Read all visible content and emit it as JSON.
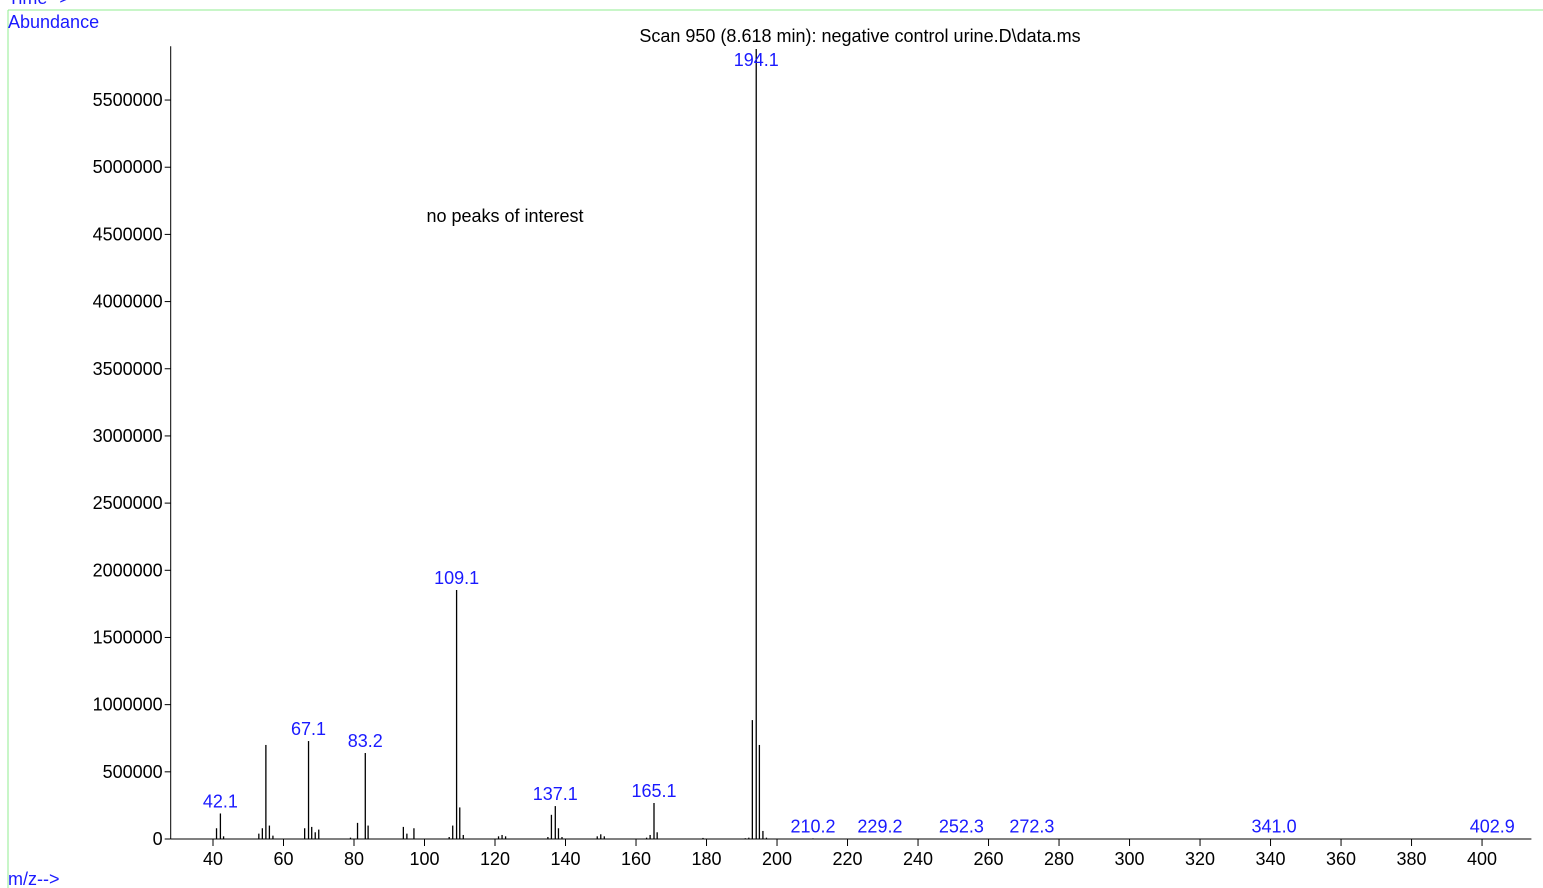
{
  "chart_data": {
    "type": "spectrum",
    "title": "Scan 950 (8.618 min): negative control urine.D\\data.ms",
    "time_label": "Time-->",
    "y_label": "Abundance",
    "x_label": "m/z-->",
    "annotation": "no peaks of interest",
    "x": [
      41,
      42.1,
      43,
      53,
      54,
      55,
      56,
      57,
      66,
      67.1,
      68,
      69,
      70,
      79,
      81,
      83.2,
      84,
      94,
      95,
      97,
      107,
      108,
      109.1,
      110,
      111,
      121,
      122,
      123,
      135,
      136,
      137.1,
      138,
      139,
      149,
      150,
      151,
      163,
      164,
      165.1,
      166,
      179,
      191,
      192,
      193,
      194.1,
      195,
      196,
      197,
      210.2,
      229.2,
      252.3,
      272.3,
      341.0,
      402.9
    ],
    "values": [
      80000,
      190000,
      20000,
      40000,
      80000,
      700000,
      100000,
      25000,
      80000,
      729000,
      90000,
      50000,
      70000,
      10000,
      120000,
      640000,
      100000,
      90000,
      40000,
      80000,
      15000,
      100000,
      1853000,
      235000,
      30000,
      20000,
      30000,
      20000,
      15000,
      180000,
      245000,
      80000,
      15000,
      20000,
      35000,
      20000,
      10000,
      30000,
      268000,
      50000,
      8000,
      6000,
      10000,
      885000,
      5880000,
      700000,
      60000,
      10000,
      5000,
      4000,
      4000,
      4000,
      3000,
      3000
    ],
    "labels": [
      null,
      "42.1",
      null,
      null,
      null,
      null,
      null,
      null,
      null,
      "67.1",
      null,
      null,
      null,
      null,
      null,
      "83.2",
      null,
      null,
      null,
      null,
      null,
      null,
      "109.1",
      null,
      null,
      null,
      null,
      null,
      null,
      null,
      "137.1",
      null,
      null,
      null,
      null,
      null,
      null,
      null,
      "165.1",
      null,
      null,
      null,
      null,
      null,
      "194.1",
      null,
      null,
      null,
      "210.2",
      "229.2",
      "252.3",
      "272.3",
      "341.0",
      "402.9"
    ],
    "color": "#000000",
    "label_color": "#1a1aff",
    "frame_color": "#90ee90",
    "xlim": [
      28,
      414
    ],
    "xticks": [
      40,
      60,
      80,
      100,
      120,
      140,
      160,
      180,
      200,
      220,
      240,
      260,
      280,
      300,
      320,
      340,
      360,
      380,
      400
    ],
    "ylim": [
      0,
      5900000
    ],
    "yticks": [
      0,
      500000,
      1000000,
      1500000,
      2000000,
      2500000,
      3000000,
      3500000,
      4000000,
      4500000,
      5000000,
      5500000
    ]
  }
}
